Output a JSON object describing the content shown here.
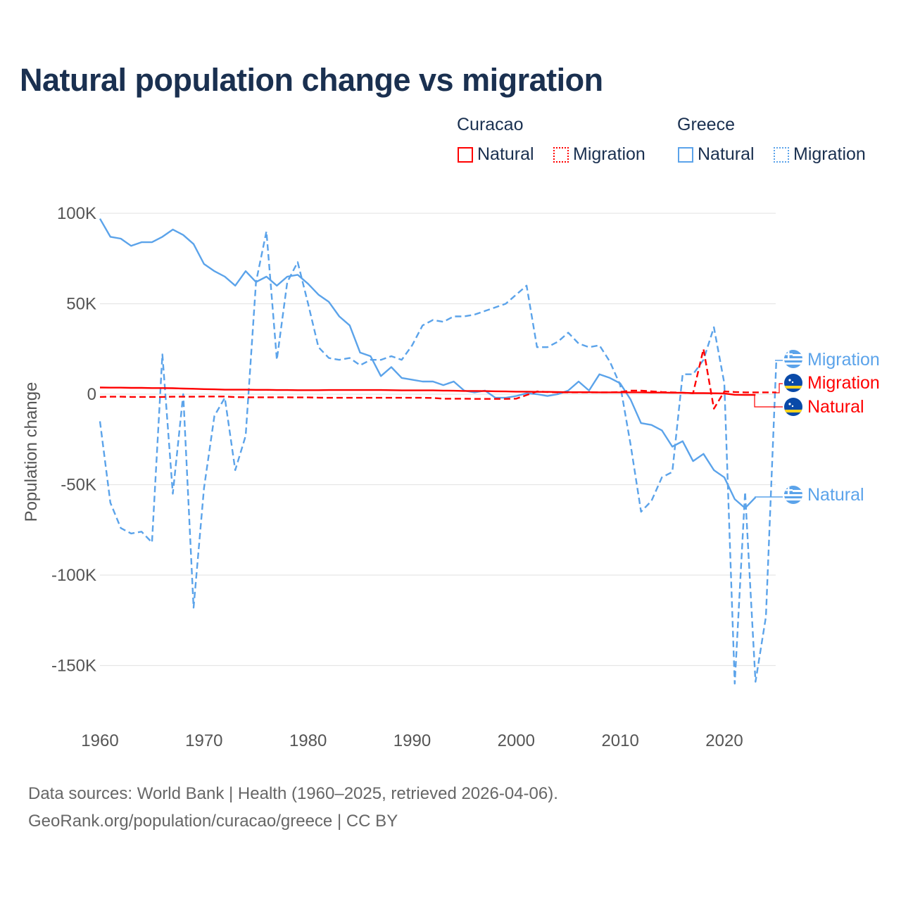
{
  "title": "Natural population change vs migration",
  "legend": {
    "groups": [
      {
        "name": "Curacao",
        "items": [
          {
            "label": "Natural",
            "style": "solid",
            "color": "#ff0000"
          },
          {
            "label": "Migration",
            "style": "dotted",
            "color": "#ff0000"
          }
        ]
      },
      {
        "name": "Greece",
        "items": [
          {
            "label": "Natural",
            "style": "solid",
            "color": "#5ba3ea"
          },
          {
            "label": "Migration",
            "style": "dotted",
            "color": "#5ba3ea"
          }
        ]
      }
    ]
  },
  "end_labels": {
    "greece_migration": "Migration",
    "curacao_migration": "Migration",
    "curacao_natural": "Natural",
    "greece_natural": "Natural"
  },
  "footer": {
    "line1": "Data sources: World Bank | Health (1960–2025, retrieved 2026-04-06).",
    "line2": "GeoRank.org/population/curacao/greece | CC BY"
  },
  "chart_data": {
    "type": "line",
    "title": "Natural population change vs migration",
    "xlabel": "",
    "ylabel": "Population change",
    "xlim": [
      1960,
      2025
    ],
    "ylim": [
      -165000,
      100000
    ],
    "x_ticks": [
      "1960",
      "1970",
      "1980",
      "1990",
      "2000",
      "2010",
      "2020"
    ],
    "y_ticks": [
      {
        "v": 100000,
        "label": "100K"
      },
      {
        "v": 50000,
        "label": "50K"
      },
      {
        "v": 0,
        "label": "0"
      },
      {
        "v": -50000,
        "label": "-50K"
      },
      {
        "v": -100000,
        "label": "-100K"
      },
      {
        "v": -150000,
        "label": "-150K"
      }
    ],
    "grid": true,
    "series": [
      {
        "name": "Greece Natural",
        "country": "Greece",
        "kind": "Natural",
        "color": "#5ba3ea",
        "dash": false,
        "start": 1960,
        "values_k": [
          97,
          87,
          86,
          82,
          84,
          84,
          87,
          91,
          88,
          83,
          72,
          68,
          65,
          60,
          68,
          62,
          65,
          60,
          65,
          66,
          61,
          55,
          51,
          43,
          38,
          23,
          21,
          10,
          15,
          9,
          8,
          7,
          7,
          5,
          7,
          2,
          1,
          2,
          -2,
          -2,
          -1,
          0.5,
          0,
          -1,
          0,
          2,
          7,
          2,
          11,
          9,
          6,
          -3,
          -16,
          -17,
          -20,
          -29,
          -26,
          -37,
          -33,
          -42,
          -46,
          -58,
          -63,
          -57
        ]
      },
      {
        "name": "Greece Migration",
        "country": "Greece",
        "kind": "Migration",
        "color": "#5ba3ea",
        "dash": true,
        "start": 1960,
        "values_k": [
          -15,
          -60,
          -74,
          -77,
          -76,
          -82,
          22,
          -55,
          0,
          -118,
          -52,
          -12,
          -2,
          -42,
          -23,
          62,
          90,
          19,
          62,
          73,
          50,
          26,
          20,
          19,
          20,
          16,
          19,
          19,
          21,
          19,
          27,
          38,
          41,
          40,
          43,
          43,
          44,
          46,
          48,
          50,
          55,
          60,
          26,
          26,
          29,
          34,
          28,
          26,
          27,
          18,
          5,
          -28,
          -65,
          -59,
          -46,
          -43,
          11,
          11,
          19,
          37,
          6,
          -160,
          -54,
          -159,
          -123,
          19
        ]
      },
      {
        "name": "Curacao Natural",
        "country": "Curacao",
        "kind": "Natural",
        "color": "#ff0000",
        "dash": false,
        "start": 1960,
        "values_k": [
          3.7,
          3.6,
          3.6,
          3.5,
          3.5,
          3.4,
          3.4,
          3.3,
          3.1,
          3.0,
          2.8,
          2.7,
          2.5,
          2.5,
          2.5,
          2.4,
          2.4,
          2.3,
          2.3,
          2.2,
          2.2,
          2.2,
          2.3,
          2.3,
          2.3,
          2.3,
          2.3,
          2.3,
          2.2,
          2.1,
          2.1,
          2.1,
          2.1,
          2.0,
          1.9,
          1.8,
          1.8,
          1.7,
          1.6,
          1.5,
          1.4,
          1.4,
          1.3,
          1.3,
          1.2,
          1.1,
          1.1,
          1.1,
          1.0,
          1.0,
          1.0,
          1.0,
          1.0,
          0.9,
          0.9,
          0.8,
          0.8,
          0.6,
          0.6,
          0.5,
          0.4,
          -0.3,
          -0.4,
          -0.4
        ]
      },
      {
        "name": "Curacao Migration",
        "country": "Curacao",
        "kind": "Migration",
        "color": "#ff0000",
        "dash": true,
        "start": 1960,
        "values_k": [
          -1.5,
          -1.4,
          -1.4,
          -1.5,
          -1.5,
          -1.5,
          -1.5,
          -1.4,
          -1.4,
          -1.4,
          -1.3,
          -1.3,
          -1.3,
          -1.6,
          -1.7,
          -1.7,
          -1.7,
          -1.7,
          -1.7,
          -1.8,
          -1.8,
          -1.9,
          -2.0,
          -2.0,
          -2.0,
          -2.0,
          -2.0,
          -2.0,
          -2.0,
          -2.0,
          -2.0,
          -2.0,
          -2.1,
          -2.5,
          -2.5,
          -2.5,
          -2.6,
          -2.6,
          -2.6,
          -2.6,
          -2.5,
          -0.5,
          1.5,
          1.2,
          1.0,
          1.0,
          1.0,
          1.0,
          1.0,
          1.0,
          1.2,
          2.0,
          2.0,
          1.6,
          1.2,
          1.0,
          0.8,
          0.5,
          25,
          -8,
          1.5,
          1.2,
          1.0,
          1.0,
          1.0,
          1.0
        ]
      }
    ]
  }
}
